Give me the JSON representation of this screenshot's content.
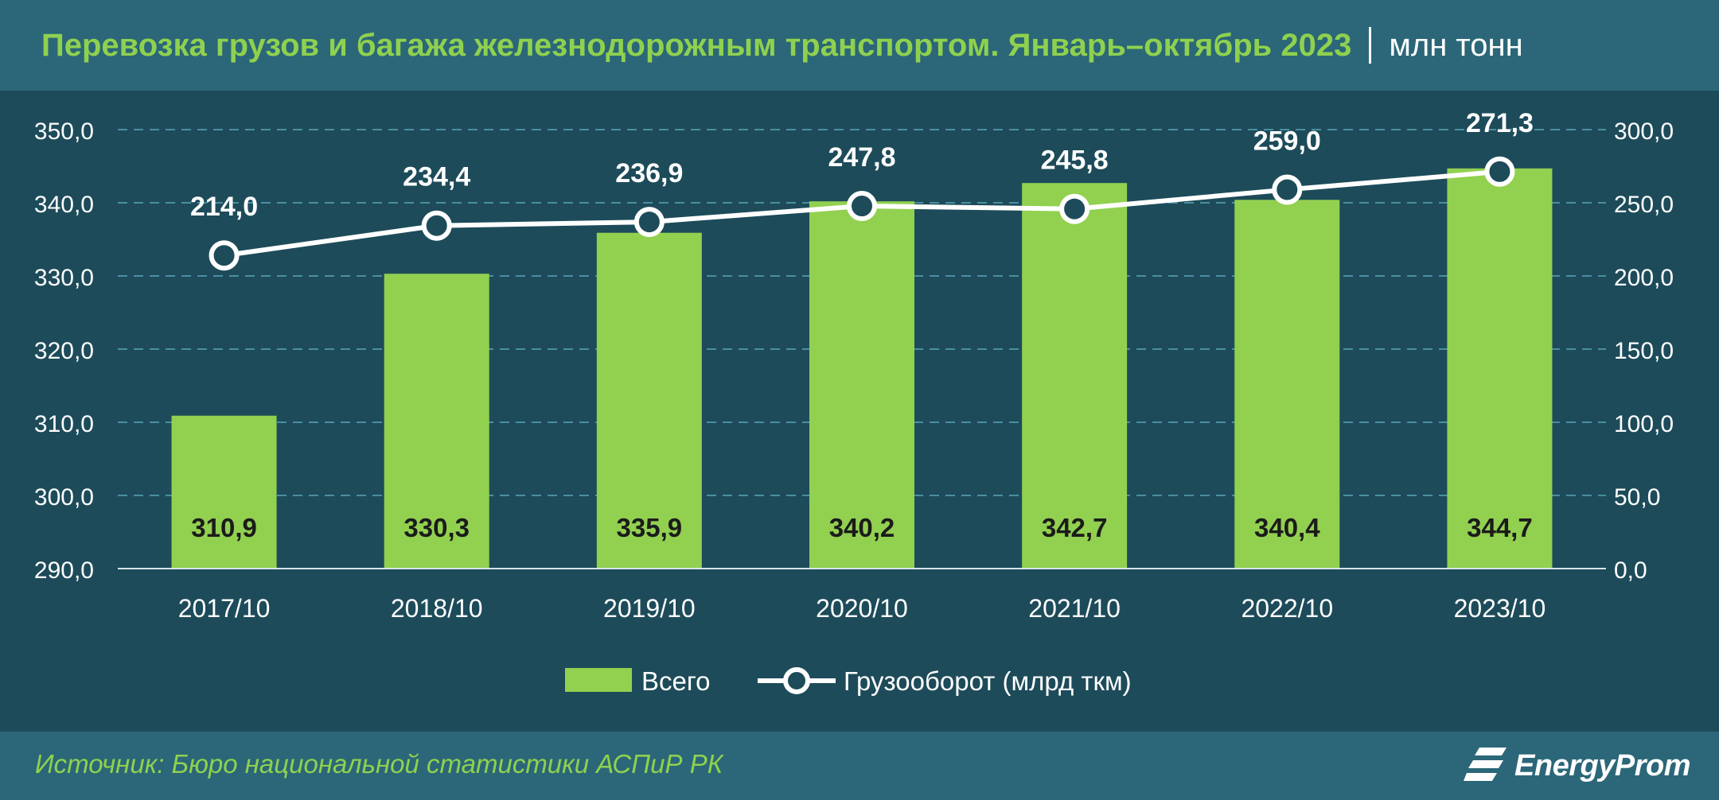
{
  "header": {
    "title": "Перевозка грузов и багажа железнодорожным транспортом. Январь–октябрь 2023",
    "unit": "млн тонн"
  },
  "footer": {
    "source": "Источник: Бюро национальной статистики АСПиР РК",
    "brand": "EnergyProm"
  },
  "colors": {
    "background": "#1d4b5a",
    "band": "#2b6778",
    "bar": "#92d050",
    "line": "#ffffff",
    "grid": "#4a8fa0",
    "text": "#ffffff",
    "accent_text": "#8fd14f"
  },
  "chart_data": {
    "type": "bar",
    "categories": [
      "2017/10",
      "2018/10",
      "2019/10",
      "2020/10",
      "2021/10",
      "2022/10",
      "2023/10"
    ],
    "series": [
      {
        "name": "Всего",
        "type": "bar",
        "axis": "left",
        "values": [
          310.9,
          330.3,
          335.9,
          340.2,
          342.7,
          340.4,
          344.7
        ],
        "labels": [
          "310,9",
          "330,3",
          "335,9",
          "340,2",
          "342,7",
          "340,4",
          "344,7"
        ]
      },
      {
        "name": "Грузооборот (млрд ткм)",
        "type": "line",
        "axis": "right",
        "values": [
          214.0,
          234.4,
          236.9,
          247.8,
          245.8,
          259.0,
          271.3
        ],
        "labels": [
          "214,0",
          "234,4",
          "236,9",
          "247,8",
          "245,8",
          "259,0",
          "271,3"
        ]
      }
    ],
    "y_left": {
      "range": [
        290,
        350
      ],
      "ticks": [
        290,
        300,
        310,
        320,
        330,
        340,
        350
      ],
      "tick_labels": [
        "290,0",
        "300,0",
        "310,0",
        "320,0",
        "330,0",
        "340,0",
        "350,0"
      ]
    },
    "y_right": {
      "range": [
        0,
        300
      ],
      "ticks": [
        0,
        50,
        100,
        150,
        200,
        250,
        300
      ],
      "tick_labels": [
        "0,0",
        "50,0",
        "100,0",
        "150,0",
        "200,0",
        "250,0",
        "300,0"
      ]
    },
    "grid": true,
    "legend": "bottom"
  }
}
